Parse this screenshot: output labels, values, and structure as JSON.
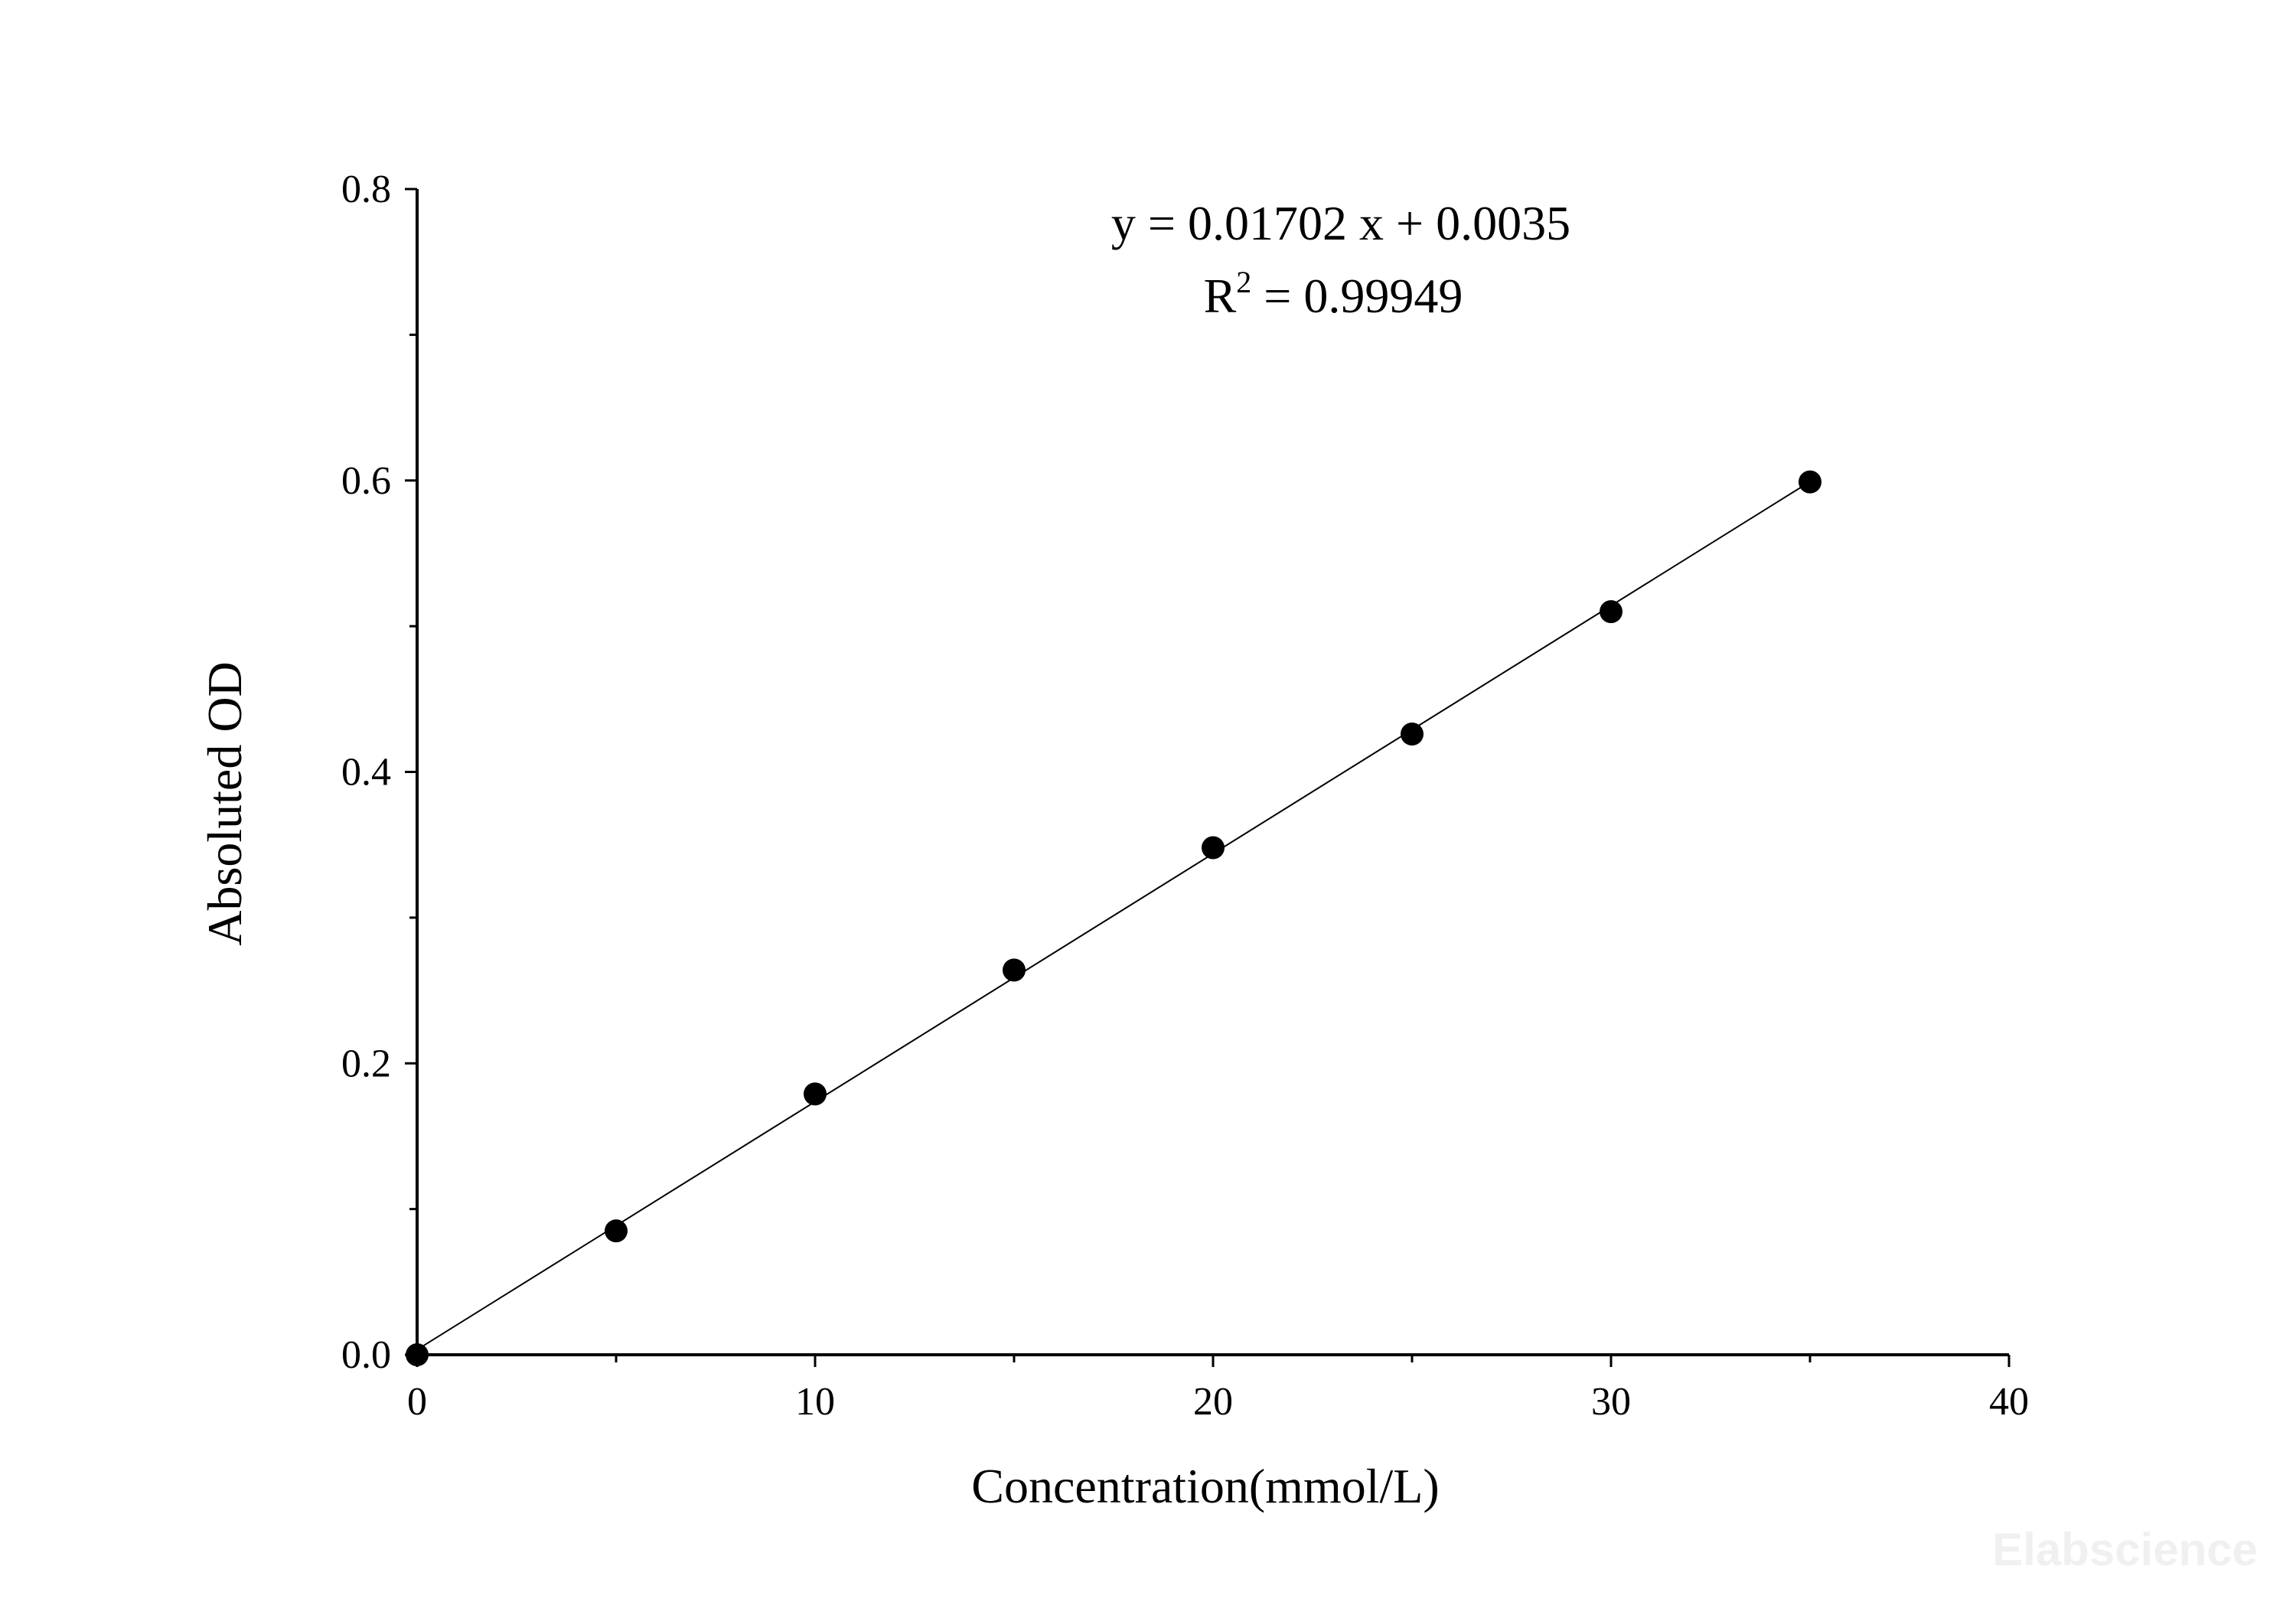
{
  "chart_data": {
    "type": "scatter",
    "title": "",
    "xlabel": "Concentration(mmol/L)",
    "ylabel": "Absoluted OD",
    "xlim": [
      0,
      40
    ],
    "ylim": [
      0,
      0.8
    ],
    "x_ticks": [
      "0",
      "10",
      "20",
      "30",
      "40"
    ],
    "y_ticks": [
      "0.0",
      "0.2",
      "0.4",
      "0.6",
      "0.8"
    ],
    "grid": false,
    "legend": "none",
    "series": [
      {
        "x": [
          0,
          5,
          10,
          15,
          20,
          25,
          30,
          35
        ],
        "y": [
          0.0,
          0.085,
          0.179,
          0.264,
          0.348,
          0.426,
          0.51,
          0.599
        ]
      }
    ],
    "fit_line": {
      "slope": 0.01702,
      "intercept": 0.0035,
      "x_range": [
        0,
        35
      ]
    },
    "annotations": {
      "equation": "y = 0.01702 x + 0.0035",
      "r2_prefix": "R",
      "r2_exponent": "2",
      "r2_value": " = 0.99949"
    },
    "watermark": "Elabscience",
    "colors": {
      "marker": "#000000",
      "line": "#000000",
      "watermark": "#f0f0f0"
    }
  }
}
